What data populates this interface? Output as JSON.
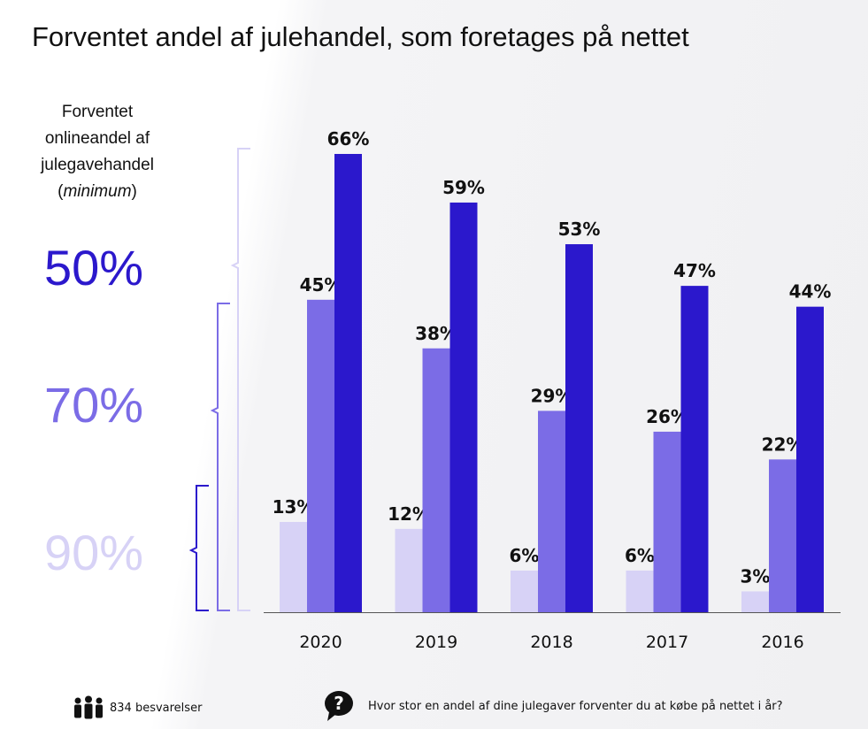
{
  "title": "Forventet andel af julehandel, som foretages på nettet",
  "legend": {
    "title_lines": [
      "Forventet",
      "onlineandel af",
      "julegavehandel"
    ],
    "title_paren_open": "(",
    "title_italic": "minimum",
    "title_paren_close": ")",
    "items": [
      {
        "label": "50%",
        "color": "#2b18cc"
      },
      {
        "label": "70%",
        "color": "#7b6ce6"
      },
      {
        "label": "90%",
        "color": "#d7d2f6"
      }
    ]
  },
  "chart_data": {
    "type": "bar",
    "title": "Forventet andel af julehandel, som foretages på nettet",
    "categories": [
      "2020",
      "2019",
      "2018",
      "2017",
      "2016"
    ],
    "series": [
      {
        "name": "90%",
        "values": [
          13,
          12,
          6,
          6,
          3
        ],
        "labels": [
          "13%",
          "12%",
          "6%",
          "6%",
          "3%"
        ],
        "color": "#d7d2f6"
      },
      {
        "name": "70%",
        "values": [
          45,
          38,
          29,
          26,
          22
        ],
        "labels": [
          "45%",
          "38%",
          "29%",
          "26%",
          "22%"
        ],
        "color": "#7b6ce6"
      },
      {
        "name": "50%",
        "values": [
          66,
          59,
          53,
          47,
          44
        ],
        "labels": [
          "66%",
          "59%",
          "53%",
          "47%",
          "44%"
        ],
        "color": "#2b18cc"
      }
    ],
    "ylim": [
      0,
      66
    ],
    "grid": false,
    "legend_position": "left"
  },
  "footer": {
    "respondents_icon": "people-icon",
    "respondents": "834 besvarelser",
    "question_icon": "question-bubble-icon",
    "question": "Hvor stor en andel af dine julegaver forventer du at købe på nettet i år?"
  }
}
